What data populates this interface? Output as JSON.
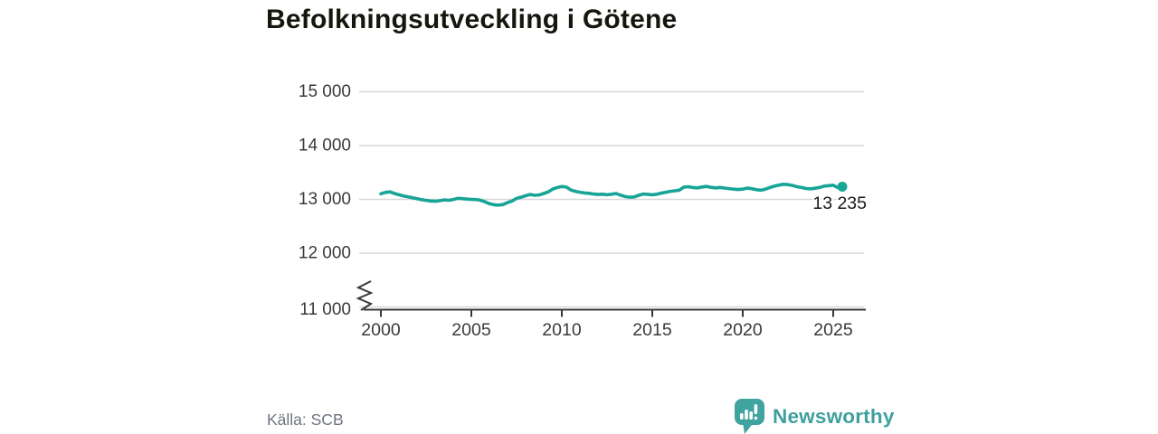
{
  "title": "Befolkningsutveckling i Götene",
  "source": "Källa: SCB",
  "logo": {
    "text": "Newsworthy",
    "icon": "newsworthy-speech-bubble-bar-chart-icon"
  },
  "colors": {
    "line": "#18a497",
    "grid": "#d8d8d8",
    "axis": "#383838",
    "tick_text": "#3a3a3a",
    "annotation_text": "#1a1a1a",
    "title_text": "#16160f",
    "muted_text": "#6f7480",
    "logo_teal": "#3fa09e",
    "background": "#ffffff"
  },
  "chart_data": {
    "type": "line",
    "title": "Befolkningsutveckling i Götene",
    "xlabel": "",
    "ylabel": "",
    "grid": "horizontal",
    "axis_break": true,
    "x_ticks": [
      2000,
      2005,
      2010,
      2015,
      2020,
      2025
    ],
    "x_tick_labels": [
      "2000",
      "2005",
      "2010",
      "2015",
      "2020",
      "2025"
    ],
    "y_ticks": [
      11000,
      12000,
      13000,
      14000,
      15000
    ],
    "y_tick_labels": [
      "11 000",
      "12 000",
      "13 000",
      "14 000",
      "15 000"
    ],
    "ylim": [
      11000,
      15000
    ],
    "xlim": [
      2000,
      2025.5
    ],
    "end_label": "13 235",
    "end_value": 13235,
    "end_x": 2025.5,
    "x": [
      2000.0,
      2000.25,
      2000.5,
      2000.75,
      2001.0,
      2001.25,
      2001.5,
      2001.75,
      2002.0,
      2002.25,
      2002.5,
      2002.75,
      2003.0,
      2003.25,
      2003.5,
      2003.75,
      2004.0,
      2004.25,
      2004.5,
      2004.75,
      2005.0,
      2005.25,
      2005.5,
      2005.75,
      2006.0,
      2006.25,
      2006.5,
      2006.75,
      2007.0,
      2007.25,
      2007.5,
      2007.75,
      2008.0,
      2008.25,
      2008.5,
      2008.75,
      2009.0,
      2009.25,
      2009.5,
      2009.75,
      2010.0,
      2010.25,
      2010.5,
      2010.75,
      2011.0,
      2011.25,
      2011.5,
      2011.75,
      2012.0,
      2012.25,
      2012.5,
      2012.75,
      2013.0,
      2013.25,
      2013.5,
      2013.75,
      2014.0,
      2014.25,
      2014.5,
      2014.75,
      2015.0,
      2015.25,
      2015.5,
      2015.75,
      2016.0,
      2016.25,
      2016.5,
      2016.75,
      2017.0,
      2017.25,
      2017.5,
      2017.75,
      2018.0,
      2018.25,
      2018.5,
      2018.75,
      2019.0,
      2019.25,
      2019.5,
      2019.75,
      2020.0,
      2020.25,
      2020.5,
      2020.75,
      2021.0,
      2021.25,
      2021.5,
      2021.75,
      2022.0,
      2022.25,
      2022.5,
      2022.75,
      2023.0,
      2023.25,
      2023.5,
      2023.75,
      2024.0,
      2024.25,
      2024.5,
      2024.75,
      2025.0,
      2025.25,
      2025.5
    ],
    "values": [
      13105,
      13130,
      13140,
      13110,
      13085,
      13062,
      13048,
      13030,
      13012,
      12995,
      12982,
      12970,
      12965,
      12975,
      12990,
      12983,
      12996,
      13020,
      13014,
      13005,
      13000,
      12996,
      12985,
      12955,
      12920,
      12900,
      12893,
      12905,
      12940,
      12970,
      13018,
      13040,
      13068,
      13090,
      13075,
      13082,
      13110,
      13140,
      13192,
      13220,
      13238,
      13228,
      13175,
      13150,
      13132,
      13120,
      13112,
      13100,
      13090,
      13096,
      13086,
      13096,
      13110,
      13078,
      13052,
      13040,
      13046,
      13075,
      13100,
      13094,
      13086,
      13096,
      13116,
      13132,
      13150,
      13160,
      13172,
      13228,
      13236,
      13220,
      13214,
      13230,
      13240,
      13224,
      13214,
      13222,
      13210,
      13200,
      13190,
      13184,
      13190,
      13210,
      13198,
      13180,
      13170,
      13190,
      13220,
      13246,
      13266,
      13280,
      13274,
      13258,
      13236,
      13220,
      13202,
      13196,
      13206,
      13222,
      13245,
      13256,
      13264,
      13218,
      13235
    ]
  }
}
